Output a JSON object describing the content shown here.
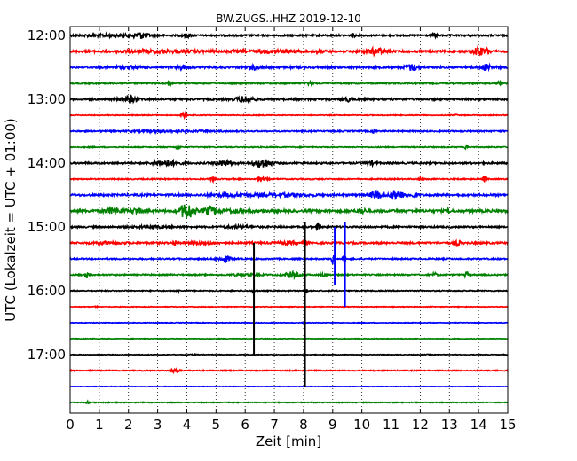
{
  "chart_data": {
    "type": "line",
    "title": "BW.ZUGS..HHZ 2019-12-10",
    "xlabel": "Zeit  [min]",
    "ylabel": "UTC (Lokalzeit = UTC + 01:00)",
    "xlim": [
      0,
      15
    ],
    "x_ticks": [
      "0",
      "1",
      "2",
      "3",
      "4",
      "5",
      "6",
      "7",
      "8",
      "9",
      "10",
      "11",
      "12",
      "13",
      "14",
      "15"
    ],
    "y_ticks": [
      "12:00",
      "13:00",
      "14:00",
      "15:00",
      "16:00",
      "17:00"
    ],
    "grid": "vertical-dotted",
    "trace_colors": [
      "#000000",
      "#ff0000",
      "#0000ff",
      "#008000"
    ],
    "series": [
      {
        "start": "12:00",
        "color": "#000000",
        "amp": 1.0,
        "events": [
          [
            1.5,
            2.5,
            2
          ],
          [
            2.4,
            0.5,
            4
          ],
          [
            4.0,
            0.3,
            3
          ],
          [
            9.7,
            0.1,
            3
          ],
          [
            12.5,
            0.1,
            4
          ]
        ]
      },
      {
        "start": "12:15",
        "color": "#ff0000",
        "amp": 1.2,
        "events": [
          [
            3.0,
            3.0,
            2
          ],
          [
            7.0,
            3.0,
            2
          ],
          [
            10.5,
            0.6,
            4
          ],
          [
            14.0,
            0.3,
            5
          ],
          [
            14.3,
            0.2,
            4
          ]
        ]
      },
      {
        "start": "12:30",
        "color": "#0000ff",
        "amp": 1.2,
        "events": [
          [
            2.0,
            1.0,
            2
          ],
          [
            3.8,
            0.4,
            3
          ],
          [
            6.3,
            0.3,
            3
          ],
          [
            11.7,
            0.4,
            4
          ],
          [
            14.3,
            0.4,
            4
          ]
        ]
      },
      {
        "start": "12:45",
        "color": "#008000",
        "amp": 0.8,
        "events": [
          [
            3.4,
            0.1,
            6
          ],
          [
            8.2,
            0.2,
            3
          ],
          [
            14.7,
            0.1,
            4
          ]
        ]
      },
      {
        "start": "13:00",
        "color": "#000000",
        "amp": 1.1,
        "events": [
          [
            2.0,
            0.5,
            5
          ],
          [
            6.0,
            0.6,
            4
          ],
          [
            9.5,
            0.3,
            3
          ]
        ]
      },
      {
        "start": "13:15",
        "color": "#ff0000",
        "amp": 0.5,
        "events": [
          [
            3.9,
            0.1,
            8
          ],
          [
            13.2,
            0.1,
            3
          ]
        ]
      },
      {
        "start": "13:30",
        "color": "#0000ff",
        "amp": 0.8,
        "events": [
          [
            3.5,
            3.0,
            2
          ],
          [
            10.4,
            0.1,
            4
          ]
        ]
      },
      {
        "start": "13:45",
        "color": "#008000",
        "amp": 0.6,
        "events": [
          [
            3.7,
            0.1,
            6
          ],
          [
            13.6,
            0.1,
            6
          ]
        ]
      },
      {
        "start": "14:00",
        "color": "#000000",
        "amp": 1.0,
        "events": [
          [
            3.3,
            0.8,
            4
          ],
          [
            5.3,
            0.6,
            4
          ],
          [
            6.6,
            0.5,
            7
          ],
          [
            10.3,
            0.3,
            3
          ]
        ]
      },
      {
        "start": "14:15",
        "color": "#ff0000",
        "amp": 0.7,
        "events": [
          [
            4.9,
            0.1,
            5
          ],
          [
            6.6,
            0.3,
            3
          ],
          [
            12.0,
            0.1,
            4
          ],
          [
            14.2,
            0.1,
            6
          ]
        ]
      },
      {
        "start": "14:30",
        "color": "#0000ff",
        "amp": 1.2,
        "events": [
          [
            5.5,
            1.5,
            2
          ],
          [
            7.3,
            2.0,
            2
          ],
          [
            10.5,
            0.4,
            5
          ],
          [
            11.2,
            0.4,
            6
          ],
          [
            11.8,
            0.2,
            3
          ]
        ]
      },
      {
        "start": "14:45",
        "color": "#008000",
        "amp": 1.5,
        "events": [
          [
            1.5,
            0.6,
            3
          ],
          [
            2.3,
            0.3,
            3
          ],
          [
            4.0,
            0.4,
            8
          ],
          [
            4.8,
            0.5,
            4
          ],
          [
            5.8,
            1.0,
            2
          ],
          [
            10.0,
            0.2,
            3
          ],
          [
            13.0,
            0.1,
            3
          ]
        ]
      },
      {
        "start": "15:00",
        "color": "#000000",
        "amp": 1.0,
        "events": [
          [
            2.8,
            1.2,
            2
          ],
          [
            5.8,
            1.0,
            2
          ],
          [
            8.5,
            0.1,
            6
          ]
        ]
      },
      {
        "start": "15:15",
        "color": "#ff0000",
        "amp": 1.1,
        "events": [
          [
            1.3,
            1.0,
            2
          ],
          [
            3.6,
            0.1,
            4
          ],
          [
            4.5,
            1.0,
            2
          ],
          [
            7.5,
            1.0,
            2
          ],
          [
            13.3,
            0.1,
            5
          ]
        ]
      },
      {
        "start": "15:30",
        "color": "#0000ff",
        "amp": 0.8,
        "events": [
          [
            5.3,
            0.4,
            5
          ],
          [
            9.0,
            0.05,
            12
          ],
          [
            9.4,
            0.05,
            10
          ]
        ]
      },
      {
        "start": "15:45",
        "color": "#008000",
        "amp": 0.8,
        "events": [
          [
            0.6,
            0.1,
            6
          ],
          [
            6.0,
            1.0,
            2
          ],
          [
            7.6,
            0.5,
            5
          ],
          [
            8.7,
            0.2,
            3
          ],
          [
            12.5,
            0.1,
            4
          ],
          [
            13.6,
            0.1,
            6
          ]
        ]
      },
      {
        "start": "16:00",
        "color": "#000000",
        "amp": 0.6,
        "events": [
          [
            3.7,
            0.1,
            3
          ],
          [
            6.3,
            0.05,
            6
          ],
          [
            8.1,
            0.05,
            5
          ]
        ]
      },
      {
        "start": "16:15",
        "color": "#ff0000",
        "amp": 0.4,
        "events": [
          [
            0.9,
            0.1,
            3
          ]
        ]
      },
      {
        "start": "16:30",
        "color": "#0000ff",
        "amp": 0.4,
        "events": []
      },
      {
        "start": "16:45",
        "color": "#008000",
        "amp": 0.4,
        "events": []
      },
      {
        "start": "17:00",
        "color": "#000000",
        "amp": 0.4,
        "events": [
          [
            4.3,
            0.3,
            2
          ],
          [
            12.3,
            0.1,
            2
          ]
        ]
      },
      {
        "start": "17:15",
        "color": "#ff0000",
        "amp": 0.6,
        "events": [
          [
            3.6,
            0.3,
            4
          ]
        ]
      },
      {
        "start": "17:30",
        "color": "#0000ff",
        "amp": 0.3,
        "events": []
      },
      {
        "start": "17:45",
        "color": "#008000",
        "amp": 0.5,
        "events": [
          [
            0.6,
            0.05,
            6
          ]
        ]
      }
    ],
    "spikes": [
      {
        "x": 6.3,
        "from": "15:15",
        "to": "17:00",
        "color": "#000000"
      },
      {
        "x": 8.05,
        "from": "14:55",
        "to": "17:30",
        "color": "#000000"
      },
      {
        "x": 9.07,
        "from": "15:00",
        "to": "15:55",
        "color": "#0000ff"
      },
      {
        "x": 9.42,
        "from": "14:55",
        "to": "16:15",
        "color": "#0000ff"
      }
    ]
  }
}
